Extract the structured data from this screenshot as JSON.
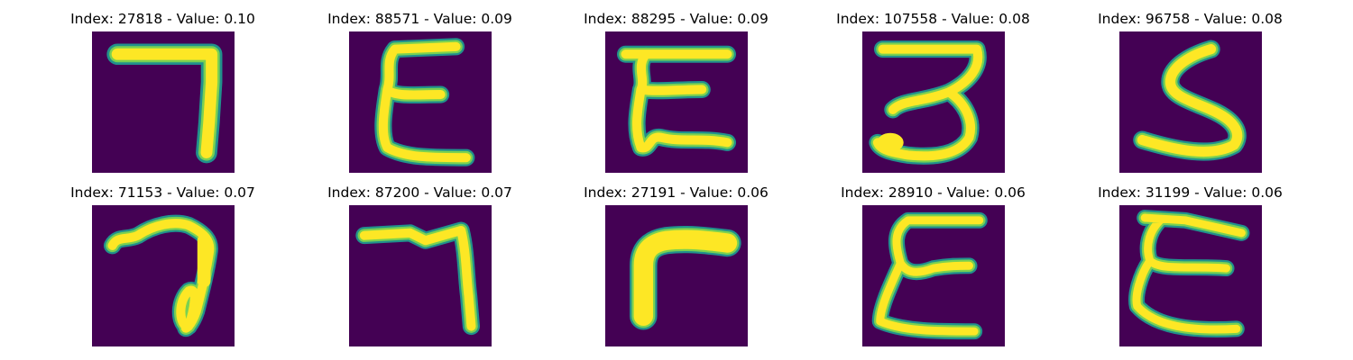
{
  "colors": {
    "background": "#440154",
    "stroke_outer": "#21918c",
    "stroke_mid": "#7ad151",
    "stroke_core": "#fde725"
  },
  "grid": {
    "rows": 2,
    "cols": 5
  },
  "samples": [
    {
      "title": "Index: 27818 - Value: 0.10",
      "shape": "seven"
    },
    {
      "title": "Index: 88571 - Value: 0.09",
      "shape": "epsilon"
    },
    {
      "title": "Index: 88295 - Value: 0.09",
      "shape": "epsilon"
    },
    {
      "title": "Index: 107558 - Value: 0.08",
      "shape": "three"
    },
    {
      "title": "Index: 96758 - Value: 0.08",
      "shape": "five"
    },
    {
      "title": "Index: 71153 - Value: 0.07",
      "shape": "seven-loop"
    },
    {
      "title": "Index: 87200 - Value: 0.07",
      "shape": "seven"
    },
    {
      "title": "Index: 27191 - Value: 0.06",
      "shape": "corner"
    },
    {
      "title": "Index: 28910 - Value: 0.06",
      "shape": "epsilon"
    },
    {
      "title": "Index: 31199 - Value: 0.06",
      "shape": "epsilon"
    }
  ]
}
